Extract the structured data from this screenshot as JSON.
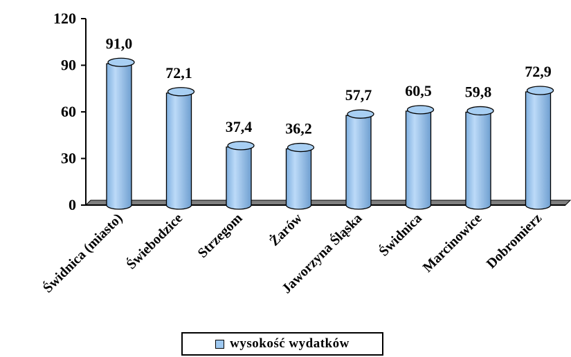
{
  "chart_data": {
    "type": "bar",
    "categories": [
      "Świdnica (miasto)",
      "Świebodzice",
      "Strzegom",
      "Żarów",
      "Jaworzyna Śląska",
      "Świdnica",
      "Marcinowice",
      "Dobromierz"
    ],
    "series": [
      {
        "name": "wysokość wydatków",
        "values": [
          91.0,
          72.1,
          37.4,
          36.2,
          57.7,
          60.5,
          59.8,
          72.9
        ]
      }
    ],
    "value_labels": [
      "91,0",
      "72,1",
      "37,4",
      "36,2",
      "57,7",
      "60,5",
      "59,8",
      "72,9"
    ],
    "y_ticks": [
      0,
      30,
      60,
      90,
      120
    ],
    "y_tick_labels": [
      "0",
      "30",
      "60",
      "90",
      "120"
    ],
    "ylim": [
      0,
      120
    ],
    "title": "",
    "xlabel": "",
    "ylabel": "",
    "grid": false,
    "legend_position": "bottom",
    "bar_color": "#9ec8f0"
  },
  "legend": {
    "label": "wysokość wydatków"
  }
}
